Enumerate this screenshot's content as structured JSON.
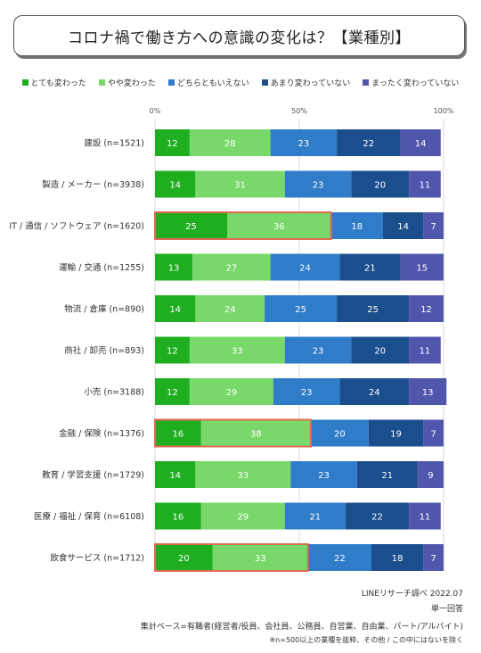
{
  "title": "コロナ禍で働き方への意識の変化は？【業種別】",
  "legend": [
    {
      "label": "とても変わった",
      "color": "#1fae1f"
    },
    {
      "label": "やや変わった",
      "color": "#79d86a"
    },
    {
      "label": "どちらともいえない",
      "color": "#2f7cc9"
    },
    {
      "label": "あまり変わっていない",
      "color": "#1b4e8c"
    },
    {
      "label": "まったく変わっていない",
      "color": "#5156ad"
    }
  ],
  "chart_data": {
    "type": "bar",
    "orientation": "horizontal",
    "stacked": true,
    "percent_axis_ticks": [
      "0%",
      "50%",
      "100%"
    ],
    "categories": [
      "建設 (n=1521)",
      "製造 / メーカー (n=3938)",
      "IT / 通信 / ソフトウェア (n=1620)",
      "運輸 / 交通 (n=1255)",
      "物流 / 倉庫 (n=890)",
      "商社 / 卸売 (n=893)",
      "小売 (n=3188)",
      "金融 / 保険 (n=1376)",
      "教育 / 学習支援 (n=1729)",
      "医療 / 福祉 / 保育 (n=6108)",
      "飲食サービス (n=1712)"
    ],
    "series": [
      {
        "name": "とても変わった",
        "color": "#1fae1f",
        "values": [
          12,
          14,
          25,
          13,
          14,
          12,
          12,
          16,
          14,
          16,
          20
        ]
      },
      {
        "name": "やや変わった",
        "color": "#79d86a",
        "values": [
          28,
          31,
          36,
          27,
          24,
          33,
          29,
          38,
          33,
          29,
          33
        ]
      },
      {
        "name": "どちらともいえない",
        "color": "#2f7cc9",
        "values": [
          23,
          23,
          18,
          24,
          25,
          23,
          23,
          20,
          23,
          21,
          22
        ]
      },
      {
        "name": "あまり変わっていない",
        "color": "#1b4e8c",
        "values": [
          22,
          20,
          14,
          21,
          25,
          20,
          24,
          19,
          21,
          22,
          18
        ]
      },
      {
        "name": "まったく変わっていない",
        "color": "#5156ad",
        "values": [
          14,
          11,
          7,
          15,
          12,
          11,
          13,
          7,
          9,
          11,
          7
        ]
      }
    ],
    "highlighted_categories": [
      2,
      7,
      10
    ],
    "highlight_color": "#e06a50",
    "xlim": [
      0,
      100
    ]
  },
  "footer": {
    "source": "LINEリサーチ調べ 2022.07",
    "answer_type": "単一回答",
    "base": "集計ベース=有職者(経営者/役員、会社員、公務員、自営業、自由業、パート/アルバイト)",
    "note": "※n=500以上の業種を抜粋、その他 / この中にはないを除く"
  }
}
